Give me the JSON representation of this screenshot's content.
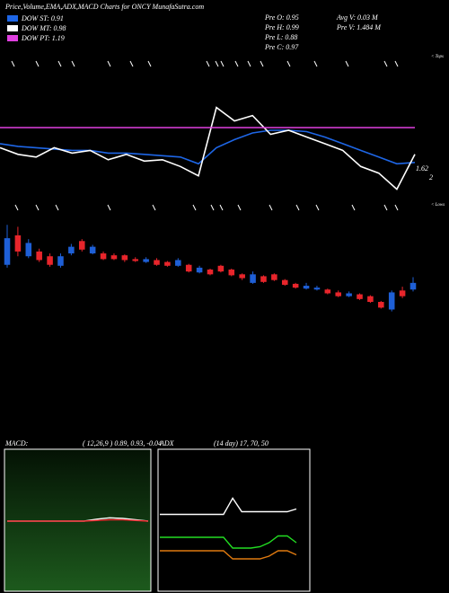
{
  "header": {
    "title": "Price,Volume,EMA,ADX,MACD Charts for ONCY MunafaSutra.com",
    "stats": [
      "Pre  O: 0.95",
      "Pre  H: 0.99",
      "Pre  L: 0.88",
      "Pre  C: 0.97",
      "Avg  V: 0.03  M",
      "Pre  V: 1.484  M"
    ],
    "tops": "< Tops",
    "lows": "< Lows"
  },
  "chart_data": [
    {
      "type": "line",
      "ylim": [
        0.6,
        1.74
      ],
      "legend": "top-left",
      "series": [
        {
          "name": "DOW ST: 0.91",
          "color": "#1e66e6",
          "values": [
            1.07,
            1.05,
            1.04,
            1.03,
            1.02,
            1.02,
            1.0,
            1.0,
            0.99,
            0.98,
            0.97,
            0.92,
            1.04,
            1.1,
            1.15,
            1.17,
            1.17,
            1.16,
            1.12,
            1.07,
            1.02,
            0.97,
            0.92,
            0.93
          ]
        },
        {
          "name": "DOW MT: 0.98",
          "color": "#ffffff",
          "values": [
            1.04,
            0.99,
            0.97,
            1.04,
            1.0,
            1.02,
            0.95,
            0.99,
            0.94,
            0.95,
            0.9,
            0.83,
            1.34,
            1.24,
            1.28,
            1.14,
            1.17,
            1.12,
            1.07,
            1.02,
            0.9,
            0.85,
            0.73,
            0.99
          ]
        },
        {
          "name": "DOW PT: 1.19",
          "color": "#e040e0",
          "values": [
            1.19,
            1.19,
            1.19,
            1.19,
            1.19,
            1.19,
            1.19,
            1.19,
            1.19,
            1.19,
            1.19,
            1.19,
            1.19,
            1.19,
            1.19,
            1.19,
            1.19,
            1.19,
            1.19,
            1.19,
            1.19,
            1.19,
            1.19,
            1.19
          ]
        }
      ],
      "annotations": [
        "1.62",
        "2"
      ]
    },
    {
      "type": "candlestick",
      "ylim": [
        0.6,
        1.8
      ],
      "up_color": "#1e5fd6",
      "down_color": "#e8252b",
      "open": [
        1.33,
        1.64,
        1.42,
        1.47,
        1.42,
        1.32,
        1.45,
        1.58,
        1.45,
        1.45,
        1.43,
        1.43,
        1.39,
        1.36,
        1.38,
        1.36,
        1.32,
        1.33,
        1.25,
        1.28,
        1.32,
        1.28,
        1.23,
        1.14,
        1.21,
        1.23,
        1.17,
        1.13,
        1.08,
        1.07,
        1.07,
        1.04,
        1.0,
        1.02,
        1.0,
        0.94,
        0.86,
        1.06,
        1.07
      ],
      "close": [
        1.61,
        1.47,
        1.56,
        1.38,
        1.33,
        1.42,
        1.52,
        1.49,
        1.52,
        1.39,
        1.39,
        1.38,
        1.37,
        1.39,
        1.33,
        1.32,
        1.38,
        1.26,
        1.3,
        1.23,
        1.26,
        1.22,
        1.19,
        1.23,
        1.15,
        1.17,
        1.12,
        1.09,
        1.11,
        1.09,
        1.03,
        1.0,
        1.03,
        0.97,
        0.94,
        0.88,
        1.04,
        1.0,
        1.14
      ],
      "high": [
        1.75,
        1.73,
        1.6,
        1.5,
        1.45,
        1.45,
        1.55,
        1.6,
        1.54,
        1.47,
        1.45,
        1.44,
        1.41,
        1.41,
        1.4,
        1.37,
        1.4,
        1.34,
        1.32,
        1.29,
        1.33,
        1.29,
        1.24,
        1.26,
        1.22,
        1.24,
        1.18,
        1.14,
        1.14,
        1.11,
        1.08,
        1.06,
        1.05,
        1.03,
        1.01,
        0.95,
        1.06,
        1.1,
        1.2
      ],
      "low": [
        1.3,
        1.42,
        1.4,
        1.36,
        1.31,
        1.3,
        1.43,
        1.47,
        1.44,
        1.38,
        1.38,
        1.36,
        1.36,
        1.35,
        1.32,
        1.31,
        1.31,
        1.25,
        1.24,
        1.22,
        1.25,
        1.21,
        1.17,
        1.13,
        1.14,
        1.16,
        1.11,
        1.08,
        1.07,
        1.06,
        1.02,
        0.99,
        0.99,
        0.96,
        0.93,
        0.87,
        0.84,
        0.98,
        1.05
      ]
    },
    {
      "type": "line",
      "title": "MACD:",
      "subtitle": "( 12,26,9 ) 0.89, 0.93, -0.04",
      "ylim": [
        -1,
        1
      ],
      "series": [
        {
          "color": "#ffffff",
          "values": [
            0,
            0,
            0,
            0,
            0,
            0,
            0,
            0.03,
            0.05,
            0.04,
            0.02,
            0
          ]
        },
        {
          "color": "#e8252b",
          "values": [
            0,
            0,
            0,
            0,
            0,
            0,
            0,
            0.01,
            0.02,
            0.02,
            0.01,
            0
          ]
        }
      ]
    },
    {
      "type": "line",
      "title": "ADX",
      "subtitle": "(14  day) 17, 70, 50",
      "ylim": [
        0,
        100
      ],
      "series": [
        {
          "color": "#ffffff",
          "values": [
            55,
            55,
            55,
            55,
            55,
            55,
            55,
            55,
            67,
            57,
            57,
            57,
            57,
            57,
            57,
            59
          ]
        },
        {
          "color": "#22dd22",
          "values": [
            38,
            38,
            38,
            38,
            38,
            38,
            38,
            38,
            30,
            30,
            30,
            31,
            34,
            39,
            39,
            34
          ]
        },
        {
          "color": "#e07a10",
          "values": [
            28,
            28,
            28,
            28,
            28,
            28,
            28,
            28,
            22,
            22,
            22,
            22,
            24,
            28,
            28,
            25
          ]
        }
      ]
    }
  ]
}
